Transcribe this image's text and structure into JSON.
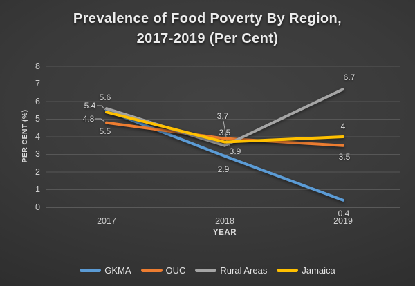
{
  "title": {
    "line1": "Prevalence of Food Poverty By Region,",
    "line2": "2017-2019 (Per Cent)"
  },
  "chart_data": {
    "type": "line",
    "categories": [
      "2017",
      "2018",
      "2019"
    ],
    "series": [
      {
        "name": "GKMA",
        "color": "#5B9BD5",
        "values": [
          5.5,
          2.9,
          0.4
        ]
      },
      {
        "name": "OUC",
        "color": "#ED7D31",
        "values": [
          4.8,
          3.9,
          3.5
        ]
      },
      {
        "name": "Rural Areas",
        "color": "#A5A5A5",
        "values": [
          5.6,
          3.5,
          6.7
        ]
      },
      {
        "name": "Jamaica",
        "color": "#FFC000",
        "values": [
          5.4,
          3.7,
          4
        ]
      }
    ],
    "xlabel": "YEAR",
    "ylabel": "PER CENT (%)",
    "ylim": [
      0,
      8
    ],
    "ytick_step": 1,
    "grid": true,
    "legend_position": "bottom",
    "data_labels_shown": true
  },
  "colors": {
    "gridline": "#575757",
    "axis_line": "#6e6e6e",
    "leader_line": "#b0b0b0",
    "title_text": "#ececec",
    "tick_text": "#cfcfcf",
    "data_label_text": "#dadada",
    "axis_title_text": "#d9d9d9",
    "legend_text": "#e3e3e3"
  }
}
